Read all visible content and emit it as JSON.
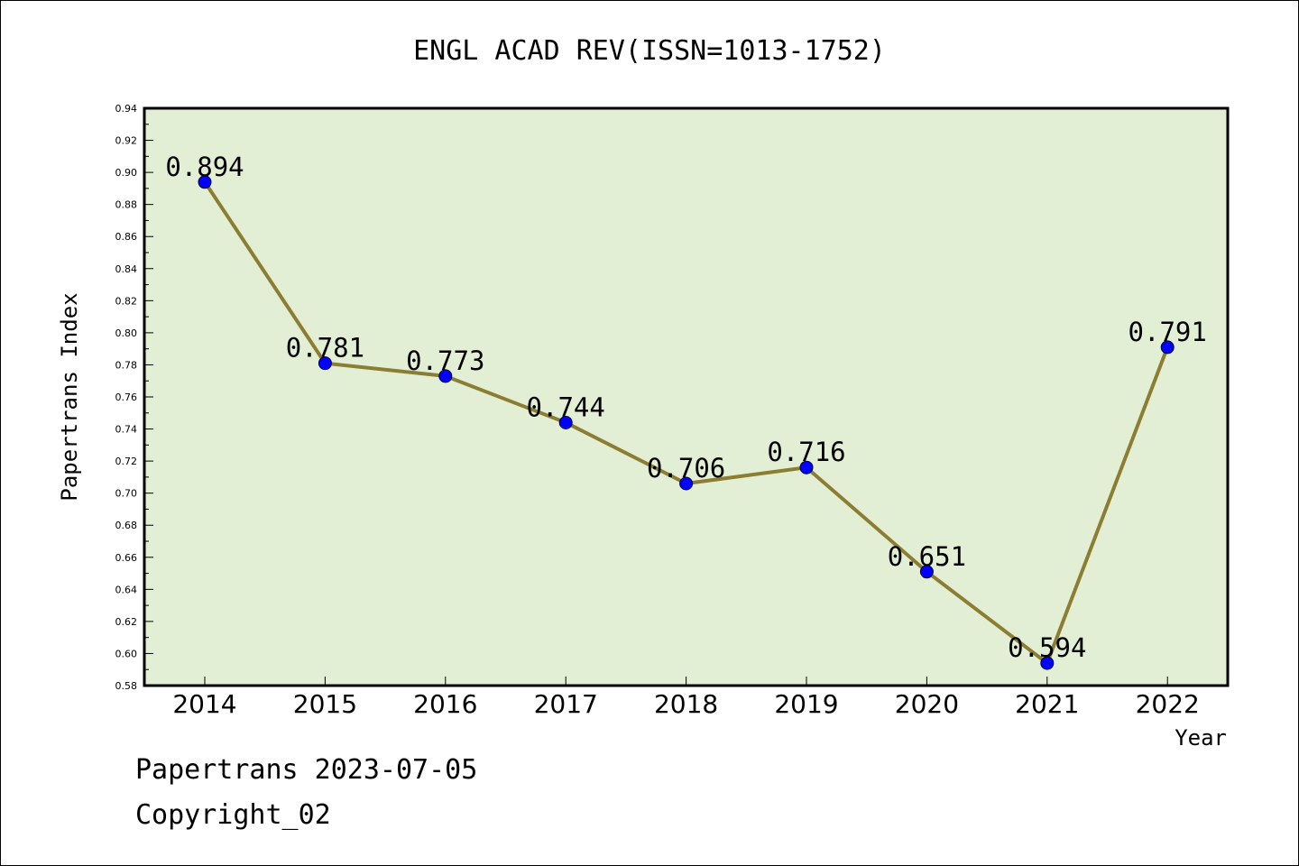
{
  "chart_data": {
    "type": "line",
    "title": "ENGL ACAD REV(ISSN=1013-1752)",
    "xlabel": "Year",
    "ylabel": "Papertrans Index",
    "categories": [
      "2014",
      "2015",
      "2016",
      "2017",
      "2018",
      "2019",
      "2020",
      "2021",
      "2022"
    ],
    "values": [
      0.894,
      0.781,
      0.773,
      0.744,
      0.706,
      0.716,
      0.651,
      0.594,
      0.791
    ],
    "value_labels": [
      "0.894",
      "0.781",
      "0.773",
      "0.744",
      "0.706",
      "0.716",
      "0.651",
      "0.594",
      "0.791"
    ],
    "ylim": [
      0.58,
      0.94
    ],
    "yticks": [
      "0.58",
      "0.60",
      "0.62",
      "0.64",
      "0.66",
      "0.68",
      "0.70",
      "0.72",
      "0.74",
      "0.76",
      "0.78",
      "0.80",
      "0.82",
      "0.84",
      "0.86",
      "0.88",
      "0.90",
      "0.92",
      "0.94"
    ],
    "grid": false,
    "colors": {
      "plot_background": "#e2efd5",
      "line": "#8b7d32",
      "marker": "#0000ff",
      "axis": "#000000"
    }
  },
  "footer": {
    "date_line": "Papertrans 2023-07-05",
    "copyright_line": "Copyright_02"
  }
}
